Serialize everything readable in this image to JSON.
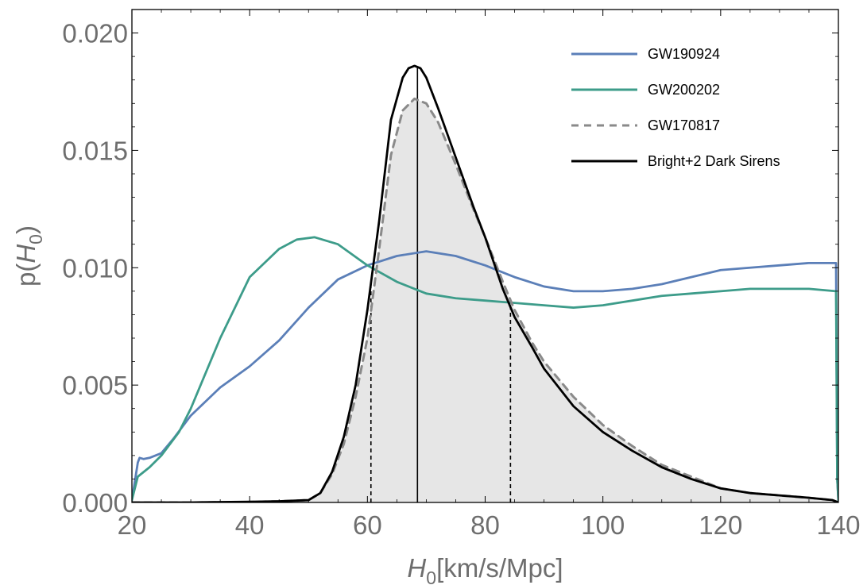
{
  "chart_data": {
    "type": "line",
    "xlabel": "H0[km/s/Mpc]",
    "xlabel_parts": {
      "main": "H",
      "sub": "0",
      "rest": "[km/s/Mpc]"
    },
    "ylabel_parts": {
      "pre": "p(",
      "main": "H",
      "sub": "0",
      "post": ")"
    },
    "xlim": [
      20,
      140
    ],
    "ylim": [
      0,
      0.021
    ],
    "x_ticks": [
      20,
      40,
      60,
      80,
      100,
      120,
      140
    ],
    "y_ticks": [
      0.0,
      0.005,
      0.01,
      0.015,
      0.02
    ],
    "x_tick_labels": [
      "20",
      "40",
      "60",
      "80",
      "100",
      "120",
      "140"
    ],
    "y_tick_labels": [
      "0.000",
      "0.005",
      "0.010",
      "0.015",
      "0.020"
    ],
    "grid": false,
    "legend_position": "top-right",
    "series": [
      {
        "name": "GW190924",
        "color": "#5b7fb8",
        "style": "solid",
        "x": [
          20,
          21,
          21.3,
          22,
          23,
          25,
          27,
          30,
          35,
          40,
          45,
          50,
          55,
          60,
          65,
          70,
          75,
          80,
          85,
          90,
          95,
          100,
          105,
          110,
          115,
          120,
          125,
          130,
          135,
          139.6,
          139.8,
          140
        ],
        "y": [
          0.0001,
          0.0017,
          0.0019,
          0.00185,
          0.0019,
          0.0021,
          0.0027,
          0.0037,
          0.0049,
          0.0058,
          0.0069,
          0.0083,
          0.0095,
          0.0101,
          0.0105,
          0.0107,
          0.0105,
          0.0101,
          0.0096,
          0.0092,
          0.009,
          0.009,
          0.0091,
          0.0093,
          0.0096,
          0.0099,
          0.01,
          0.0101,
          0.0102,
          0.0102,
          0.001,
          0.0001
        ]
      },
      {
        "name": "GW200202",
        "color": "#3d9c8a",
        "style": "solid",
        "x": [
          20,
          21,
          23,
          25,
          28,
          30,
          35,
          40,
          45,
          48,
          51,
          55,
          60,
          65,
          70,
          75,
          80,
          85,
          90,
          95,
          100,
          105,
          110,
          115,
          120,
          125,
          130,
          135,
          139.6,
          139.8,
          140
        ],
        "y": [
          0.0001,
          0.0011,
          0.0015,
          0.002,
          0.003,
          0.004,
          0.007,
          0.0096,
          0.0108,
          0.0112,
          0.0113,
          0.011,
          0.0101,
          0.0094,
          0.0089,
          0.0087,
          0.0086,
          0.0085,
          0.0084,
          0.0083,
          0.0084,
          0.0086,
          0.0088,
          0.0089,
          0.009,
          0.0091,
          0.0091,
          0.0091,
          0.009,
          0.001,
          0.0001
        ]
      },
      {
        "name": "GW170817",
        "color": "#8a8a8a",
        "style": "dashed",
        "x": [
          20,
          30,
          40,
          45,
          50,
          52,
          54,
          56,
          58,
          60,
          62,
          64,
          66,
          68,
          70,
          72,
          75,
          78,
          80,
          83,
          85,
          88,
          90,
          95,
          100,
          105,
          110,
          115,
          120,
          125,
          130,
          135,
          139,
          140
        ],
        "y": [
          0,
          0,
          2e-05,
          5e-05,
          0.0001,
          0.0004,
          0.0012,
          0.0025,
          0.0045,
          0.007,
          0.0108,
          0.0148,
          0.0167,
          0.0172,
          0.017,
          0.0162,
          0.0144,
          0.0125,
          0.0113,
          0.0094,
          0.0082,
          0.0068,
          0.006,
          0.0045,
          0.0033,
          0.0024,
          0.0016,
          0.0011,
          0.0006,
          0.0004,
          0.0003,
          0.0002,
          0.0001,
          0
        ]
      },
      {
        "name": "Bright+2 Dark Sirens",
        "color": "#000000",
        "style": "solid",
        "x": [
          20,
          30,
          40,
          45,
          50,
          52,
          54,
          56,
          58,
          60,
          62,
          64,
          66,
          67,
          68,
          69,
          70,
          72,
          75,
          78,
          80,
          83,
          85,
          88,
          90,
          95,
          100,
          105,
          110,
          115,
          120,
          125,
          130,
          135,
          139,
          140
        ],
        "y": [
          0,
          0,
          3e-05,
          5e-05,
          0.0001,
          0.0004,
          0.0013,
          0.0028,
          0.005,
          0.0082,
          0.012,
          0.0163,
          0.0181,
          0.0185,
          0.0186,
          0.0185,
          0.0181,
          0.0168,
          0.0147,
          0.0126,
          0.0113,
          0.0091,
          0.0079,
          0.0066,
          0.0057,
          0.0041,
          0.003,
          0.0022,
          0.0015,
          0.001,
          0.0006,
          0.0004,
          0.0003,
          0.0002,
          0.0001,
          0
        ]
      }
    ],
    "shaded_area": {
      "series": "GW170817",
      "color": "#e6e6e6"
    },
    "vertical_lines": [
      {
        "x": 68.5,
        "style": "solid",
        "color": "#000000"
      },
      {
        "x": 60.6,
        "style": "dashed",
        "color": "#000000"
      },
      {
        "x": 84.3,
        "style": "dashed",
        "color": "#000000"
      }
    ]
  }
}
